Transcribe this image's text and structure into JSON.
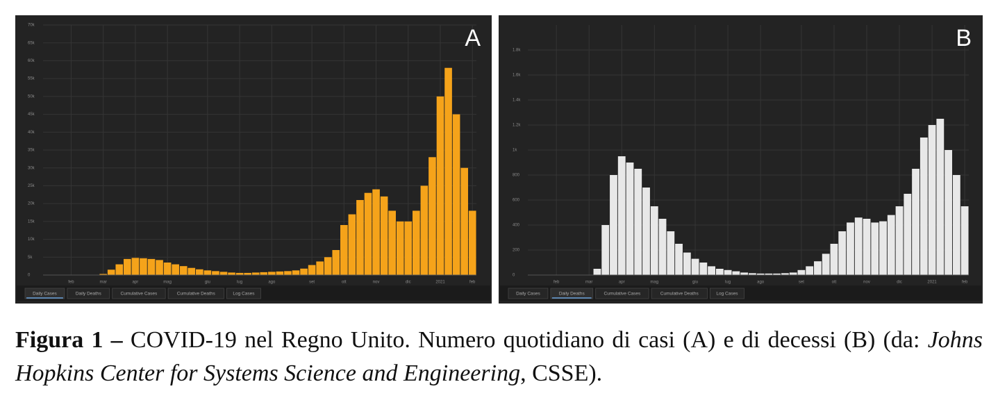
{
  "chart_data": [
    {
      "type": "bar",
      "panel_label": "A",
      "categories": [
        null,
        null,
        null,
        "feb",
        null,
        null,
        null,
        "mar",
        null,
        null,
        null,
        "apr",
        null,
        null,
        null,
        "mag",
        null,
        null,
        null,
        null,
        "giu",
        null,
        null,
        null,
        "lug",
        null,
        null,
        null,
        "ago",
        null,
        null,
        null,
        null,
        "set",
        null,
        null,
        null,
        "ott",
        null,
        null,
        null,
        "nov",
        null,
        null,
        null,
        "dic",
        null,
        null,
        null,
        "2021",
        null,
        null,
        null,
        "feb"
      ],
      "values": [
        0,
        0,
        0,
        0,
        0,
        0,
        50,
        300,
        1500,
        3000,
        4500,
        4800,
        4700,
        4500,
        4200,
        3500,
        3000,
        2500,
        2000,
        1600,
        1300,
        1100,
        900,
        700,
        600,
        600,
        700,
        800,
        900,
        1000,
        1100,
        1300,
        1800,
        2800,
        3800,
        5000,
        7000,
        14000,
        17000,
        21000,
        23000,
        24000,
        22000,
        18000,
        15000,
        15000,
        18000,
        25000,
        33000,
        50000,
        58000,
        45000,
        30000,
        18000
      ],
      "color": "#f5a31a",
      "ylim": [
        0,
        70000
      ],
      "yticks": [
        0,
        {
          "value": 5000,
          "label": "5k"
        },
        {
          "value": 10000,
          "label": "10k"
        },
        {
          "value": 15000,
          "label": "15k"
        },
        {
          "value": 20000,
          "label": "20k"
        },
        {
          "value": 25000,
          "label": "25k"
        },
        {
          "value": 30000,
          "label": "30k"
        },
        {
          "value": 35000,
          "label": "35k"
        },
        {
          "value": 40000,
          "label": "40k"
        },
        {
          "value": 45000,
          "label": "45k"
        },
        {
          "value": 50000,
          "label": "50k"
        },
        {
          "value": 55000,
          "label": "55k"
        },
        {
          "value": 60000,
          "label": "60k"
        },
        {
          "value": 65000,
          "label": "65k"
        },
        {
          "value": 70000,
          "label": "70k"
        }
      ],
      "grid": true,
      "tabs": [
        "Daily Cases",
        "Daily Deaths",
        "Cumulative Cases",
        "Cumulative Deaths",
        "Log Cases"
      ],
      "active_tab": 0
    },
    {
      "type": "bar",
      "panel_label": "B",
      "categories": [
        null,
        null,
        null,
        "feb",
        null,
        null,
        null,
        "mar",
        null,
        null,
        null,
        "apr",
        null,
        null,
        null,
        "mag",
        null,
        null,
        null,
        null,
        "giu",
        null,
        null,
        null,
        "lug",
        null,
        null,
        null,
        "ago",
        null,
        null,
        null,
        null,
        "set",
        null,
        null,
        null,
        "ott",
        null,
        null,
        null,
        "nov",
        null,
        null,
        null,
        "dic",
        null,
        null,
        null,
        "2021",
        null,
        null,
        null,
        "feb"
      ],
      "values": [
        0,
        0,
        0,
        0,
        0,
        0,
        0,
        0,
        50,
        400,
        800,
        950,
        900,
        850,
        700,
        550,
        450,
        350,
        250,
        180,
        130,
        100,
        70,
        50,
        40,
        30,
        20,
        15,
        12,
        12,
        12,
        15,
        20,
        40,
        70,
        110,
        170,
        250,
        350,
        420,
        460,
        450,
        420,
        430,
        480,
        550,
        650,
        850,
        1100,
        1200,
        1250,
        1000,
        800,
        550
      ],
      "color": "#e8e8e8",
      "ylim": [
        0,
        2000
      ],
      "yticks": [
        0,
        200,
        400,
        600,
        800,
        {
          "value": 1000,
          "label": "1k"
        },
        {
          "value": 1200,
          "label": "1.2k"
        },
        {
          "value": 1400,
          "label": "1.4k"
        },
        {
          "value": 1600,
          "label": "1.6k"
        },
        {
          "value": 1800,
          "label": "1.8k"
        }
      ],
      "grid": true,
      "tabs": [
        "Daily Cases",
        "Daily Deaths",
        "Cumulative Cases",
        "Cumulative Deaths",
        "Log Cases"
      ],
      "active_tab": 1
    }
  ],
  "caption": {
    "label": "Figura 1 –",
    "text": "COVID-19 nel Regno Unito. Numero quotidiano di casi (A) e di decessi (B) (da:",
    "source": "Johns Hopkins Center for Systems Science and Engineering",
    "end": ", CSSE)."
  }
}
